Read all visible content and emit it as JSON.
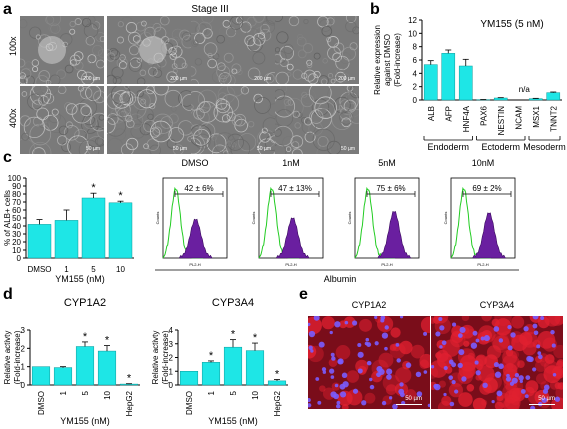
{
  "panels": {
    "a": "a",
    "b": "b",
    "c": "c",
    "d": "d",
    "e": "e"
  },
  "panel_a": {
    "stage_title": "Stage III",
    "row_labels": [
      "100x",
      "400x"
    ],
    "scale_bars": [
      "200 µm",
      "200 µm",
      "200 µm",
      "200 µm",
      "50 µm",
      "50 µm",
      "50 µm",
      "50 µm"
    ]
  },
  "panel_b_title": "YM155 (5 nM)",
  "panel_b_groups": [
    "Endoderm",
    "Ectoderm",
    "Mesoderm"
  ],
  "panel_c_flow": {
    "xlabel": "Albumin",
    "axis_small_label": "PL2-H",
    "counts_label": "Counts",
    "panels": [
      {
        "label": "DMSO",
        "gate": "42 ± 6%"
      },
      {
        "label": "1nM",
        "gate": "47 ± 13%"
      },
      {
        "label": "5nM",
        "gate": "75 ± 6%"
      },
      {
        "label": "10nM",
        "gate": "69 ± 2%"
      }
    ]
  },
  "panel_e": {
    "titles": [
      "CYP1A2",
      "CYP3A4"
    ],
    "scale": "50 µm"
  },
  "colors": {
    "bar": "#1ee6e6",
    "green_hist": "#22cc22",
    "purple_hist": "#6a1fa0",
    "fluor_bg": "#7a0d1a"
  },
  "chart_data": [
    {
      "id": "b",
      "type": "bar",
      "title": "YM155 (5 nM)",
      "ylabel": "Relative expression against DMSO (Fold-increase)",
      "categories": [
        "ALB",
        "AFP",
        "HNF4A",
        "PAX6",
        "NESTIN",
        "NCAM",
        "MSX1",
        "TNNT2"
      ],
      "values": [
        5.3,
        7.0,
        5.1,
        0.05,
        0.3,
        null,
        0.2,
        1.1
      ],
      "errors": [
        0.6,
        0.5,
        1.0,
        0.02,
        0.05,
        null,
        0.05,
        0.1
      ],
      "annotations": [
        {
          "category": "NCAM",
          "text": "n/a"
        }
      ],
      "ylim": [
        0,
        12
      ],
      "yticks": [
        0,
        2,
        4,
        6,
        8,
        10,
        12
      ]
    },
    {
      "id": "c",
      "type": "bar",
      "ylabel": "% of ALB+ cells",
      "xlabel": "YM155 (nM)",
      "categories": [
        "DMSO",
        "1",
        "5",
        "10"
      ],
      "values": [
        42,
        47,
        75,
        69
      ],
      "errors": [
        6,
        13,
        6,
        2
      ],
      "significant": [
        false,
        false,
        true,
        true
      ],
      "ylim": [
        0,
        100
      ],
      "yticks": [
        0,
        10,
        20,
        30,
        40,
        50,
        60,
        70,
        80,
        90,
        100
      ]
    },
    {
      "id": "d1",
      "type": "bar",
      "title": "CYP1A2",
      "ylabel": "Relative activty (Fold-increase)",
      "xlabel": "YM155 (nM)",
      "categories": [
        "DMSO",
        "1",
        "5",
        "10",
        "HepG2"
      ],
      "values": [
        1.0,
        0.95,
        2.1,
        1.85,
        0.05
      ],
      "errors": [
        0.0,
        0.05,
        0.25,
        0.3,
        0.02
      ],
      "significant": [
        false,
        false,
        true,
        true,
        true
      ],
      "ylim": [
        0,
        3
      ],
      "yticks": [
        0,
        1,
        2,
        3
      ]
    },
    {
      "id": "d2",
      "type": "bar",
      "title": "CYP3A4",
      "ylabel": "Relative activty (Fold-increase)",
      "xlabel": "YM155 (nM)",
      "categories": [
        "DMSO",
        "1",
        "5",
        "10",
        "HepG2"
      ],
      "values": [
        1.0,
        1.65,
        2.75,
        2.5,
        0.3
      ],
      "errors": [
        0.0,
        0.1,
        0.55,
        0.55,
        0.1
      ],
      "significant": [
        false,
        true,
        true,
        true,
        true
      ],
      "ylim": [
        0,
        4
      ],
      "yticks": [
        0,
        1,
        2,
        3,
        4
      ]
    }
  ]
}
